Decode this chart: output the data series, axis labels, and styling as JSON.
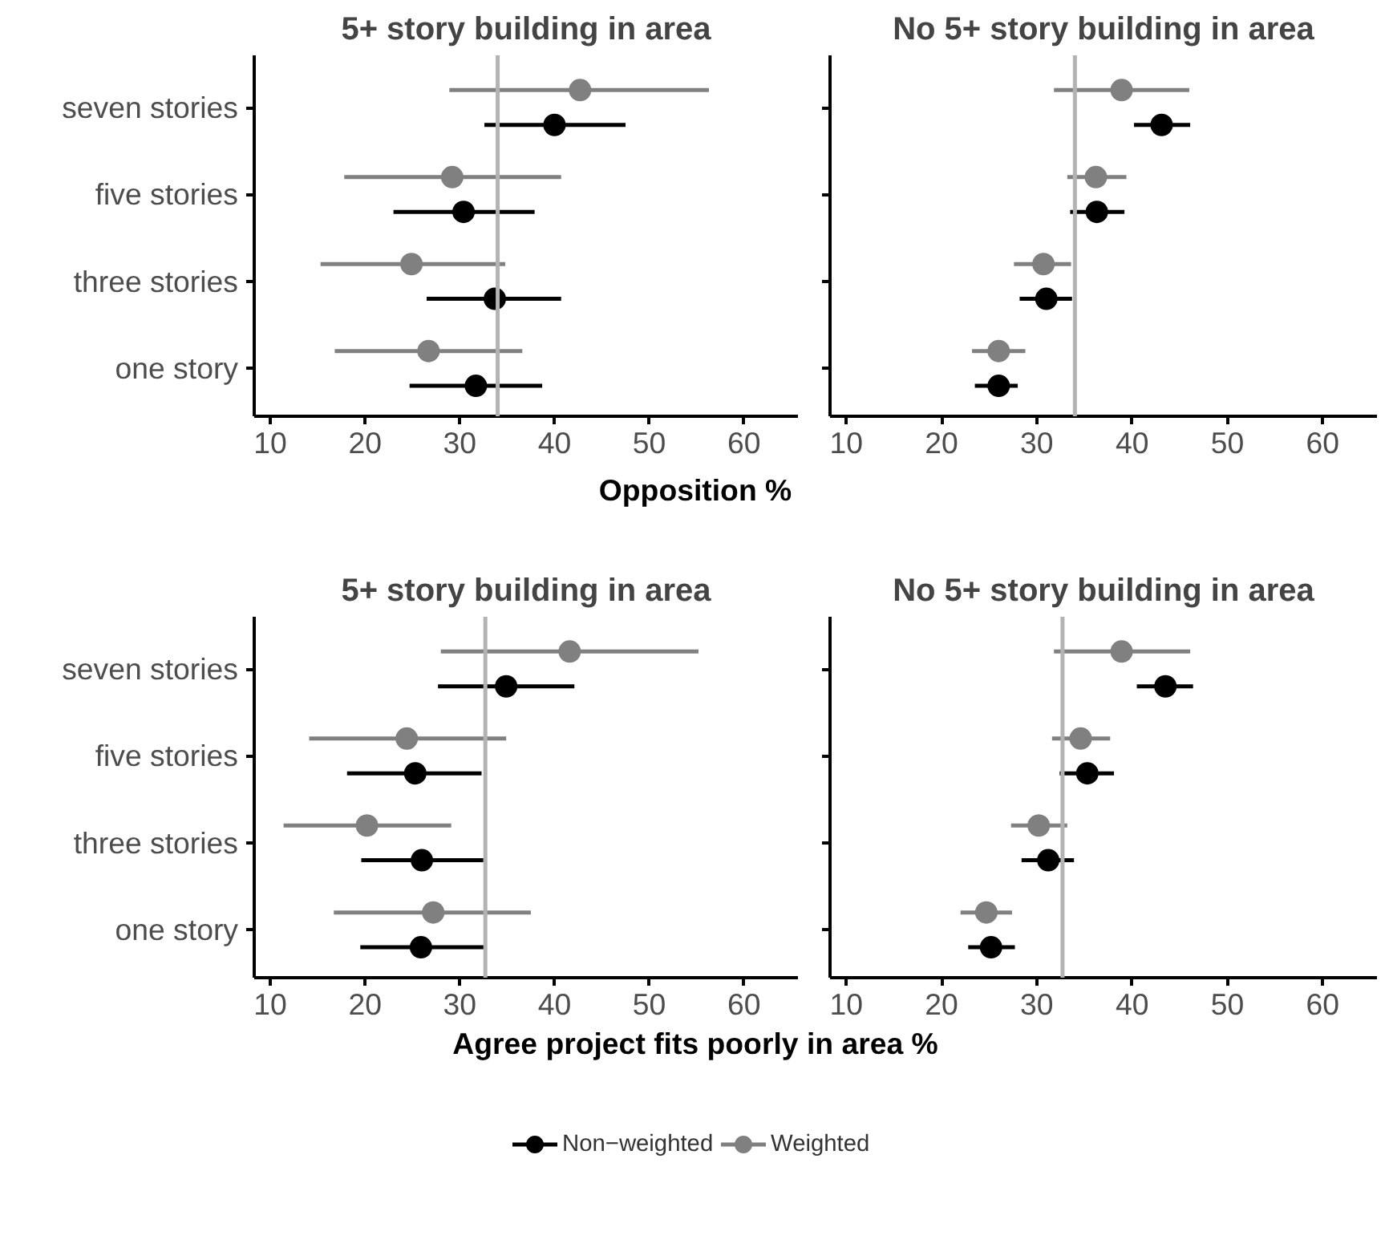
{
  "chart_data": [
    {
      "type": "scatter",
      "orientation": "horizontal",
      "title": "5+ story building in area",
      "xlabel": "Opposition %",
      "categories": [
        "seven stories",
        "five stories",
        "three stories",
        "one story"
      ],
      "xlim": [
        8.3,
        65.7
      ],
      "xticks": [
        10,
        20,
        30,
        40,
        50,
        60
      ],
      "grid": false,
      "marker": "circle",
      "ref_lines": [
        {
          "axis": "x",
          "value": 34,
          "color": "#b3b3b3"
        }
      ],
      "series": [
        {
          "color": "#000000",
          "values": [
            40.0,
            30.4,
            33.7,
            31.7
          ],
          "errors": [
            [
              32.6,
              47.5
            ],
            [
              23.0,
              37.9
            ],
            [
              26.5,
              40.7
            ],
            [
              24.7,
              38.7
            ]
          ]
        },
        {
          "color": "#808080",
          "values": [
            42.7,
            29.2,
            24.9,
            26.7
          ],
          "errors": [
            [
              28.9,
              56.3
            ],
            [
              17.8,
              40.7
            ],
            [
              15.3,
              34.8
            ],
            [
              16.8,
              36.6
            ]
          ]
        }
      ]
    },
    {
      "type": "scatter",
      "orientation": "horizontal",
      "title": "No 5+ story building in area",
      "categories": [
        null,
        null,
        null,
        null
      ],
      "xlim": [
        8.3,
        65.7
      ],
      "xticks": [
        10,
        20,
        30,
        40,
        50,
        60
      ],
      "grid": false,
      "marker": "circle",
      "tick_labels": "x",
      "ref_lines": [
        {
          "axis": "x",
          "value": 34,
          "color": "#b3b3b3"
        }
      ],
      "series": [
        {
          "color": "#000000",
          "values": [
            43.1,
            36.3,
            31.0,
            26.0
          ],
          "errors": [
            [
              40.2,
              46.1
            ],
            [
              33.5,
              39.2
            ],
            [
              28.2,
              33.7
            ],
            [
              23.5,
              28.0
            ]
          ]
        },
        {
          "color": "#808080",
          "values": [
            38.9,
            36.2,
            30.7,
            26.0
          ],
          "errors": [
            [
              31.8,
              46.0
            ],
            [
              33.2,
              39.4
            ],
            [
              27.6,
              33.6
            ],
            [
              23.2,
              28.8
            ]
          ]
        }
      ]
    },
    {
      "type": "scatter",
      "orientation": "horizontal",
      "title": "5+ story building in area",
      "xlabel": "Agree project fits poorly in area %",
      "categories": [
        "seven stories",
        "five stories",
        "three stories",
        "one story"
      ],
      "xlim": [
        8.3,
        65.7
      ],
      "xticks": [
        10,
        20,
        30,
        40,
        50,
        60
      ],
      "grid": false,
      "marker": "circle",
      "ref_lines": [
        {
          "axis": "x",
          "value": 32.7,
          "color": "#b3b3b3"
        }
      ],
      "series": [
        {
          "color": "#000000",
          "values": [
            34.9,
            25.3,
            26.0,
            25.9
          ],
          "errors": [
            [
              27.7,
              42.1
            ],
            [
              18.1,
              32.3
            ],
            [
              19.6,
              32.5
            ],
            [
              19.5,
              32.6
            ]
          ]
        },
        {
          "color": "#808080",
          "values": [
            41.6,
            24.4,
            20.2,
            27.2
          ],
          "errors": [
            [
              28.0,
              55.2
            ],
            [
              14.1,
              34.9
            ],
            [
              11.4,
              29.1
            ],
            [
              16.7,
              37.5
            ]
          ]
        }
      ]
    },
    {
      "type": "scatter",
      "orientation": "horizontal",
      "title": "No 5+ story building in area",
      "categories": [
        null,
        null,
        null,
        null
      ],
      "xlim": [
        8.3,
        65.7
      ],
      "xticks": [
        10,
        20,
        30,
        40,
        50,
        60
      ],
      "grid": false,
      "marker": "circle",
      "tick_labels": "x",
      "legend": "bottom",
      "ref_lines": [
        {
          "axis": "x",
          "value": 32.7,
          "color": "#b3b3b3"
        }
      ],
      "series": [
        {
          "name": "Non−weighted",
          "color": "#000000",
          "values": [
            43.5,
            35.3,
            31.2,
            25.2
          ],
          "errors": [
            [
              40.5,
              46.4
            ],
            [
              32.4,
              38.1
            ],
            [
              28.4,
              33.9
            ],
            [
              22.8,
              27.7
            ]
          ]
        },
        {
          "name": "Weighted",
          "color": "#808080",
          "values": [
            38.9,
            34.6,
            30.2,
            24.7
          ],
          "errors": [
            [
              31.8,
              46.1
            ],
            [
              31.6,
              37.7
            ],
            [
              27.3,
              33.2
            ],
            [
              22.0,
              27.4
            ]
          ]
        }
      ]
    }
  ]
}
